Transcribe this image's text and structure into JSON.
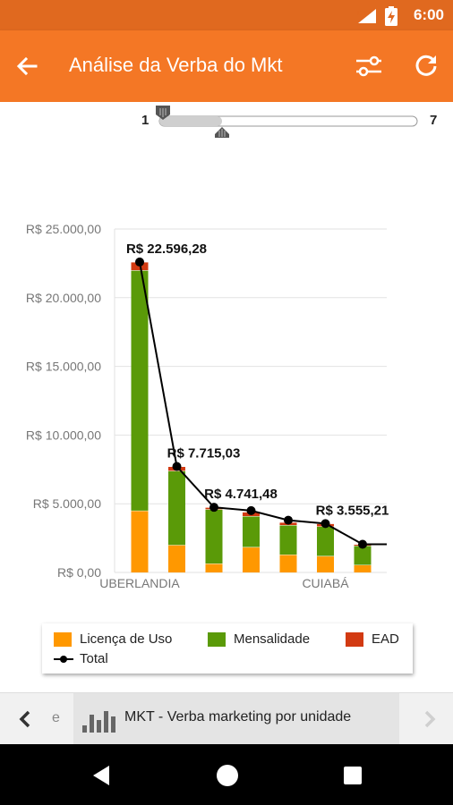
{
  "status_bar": {
    "time": "6:00",
    "network": "LTE"
  },
  "app_bar": {
    "title": "Análise da Verba do Mkt",
    "back_icon": "arrow-left-icon",
    "filter_icon": "sliders-icon",
    "refresh_icon": "refresh-icon"
  },
  "range_slider": {
    "min_label": "1",
    "max_label": "7",
    "lower_value": 1,
    "upper_value": 3
  },
  "chart_data": {
    "type": "bar",
    "stacked": true,
    "categories": [
      "UBERLANDIA",
      "",
      "",
      "",
      "",
      "CUIABÁ",
      ""
    ],
    "series": [
      {
        "name": "Licença de Uso",
        "color": "#ff9800",
        "values": [
          4500,
          2000,
          650,
          1850,
          1300,
          1200,
          550
        ]
      },
      {
        "name": "Mensalidade",
        "color": "#5a9a08",
        "values": [
          17500,
          5400,
          3950,
          2250,
          2150,
          2150,
          1400
        ]
      },
      {
        "name": "EAD",
        "color": "#d23a12",
        "values": [
          596.28,
          315.03,
          141.48,
          300,
          200,
          205.21,
          100
        ]
      }
    ],
    "line_series": {
      "name": "Total",
      "color": "#000000",
      "values": [
        22596.28,
        7715.03,
        4741.48,
        4500,
        3800,
        3555.21,
        2050
      ]
    },
    "data_labels": [
      {
        "text": "R$ 22.596,28",
        "index": 0
      },
      {
        "text": "R$ 7.715,03",
        "index": 1
      },
      {
        "text": "R$ 4.741,48",
        "index": 2
      },
      {
        "text": "R$ 3.555,21",
        "index": 5
      }
    ],
    "y_ticks": [
      "R$ 0,00",
      "R$ 5.000,00",
      "R$ 10.000,00",
      "R$ 15.000,00",
      "R$ 20.000,00",
      "R$ 25.000,00"
    ],
    "ylim": [
      0,
      25000
    ],
    "grid": true,
    "legend_position": "bottom"
  },
  "legend": {
    "items": [
      "Licença de Uso",
      "Mensalidade",
      "EAD",
      "Total"
    ]
  },
  "bottom_tabs": {
    "prev_partial": "e",
    "current": "MKT - Verba marketing por unidade",
    "prev_icon": "chevron-left-icon",
    "next_icon": "chevron-right-icon"
  },
  "nav": {
    "back": "nav-back-icon",
    "home": "nav-home-icon",
    "recents": "nav-recents-icon"
  }
}
